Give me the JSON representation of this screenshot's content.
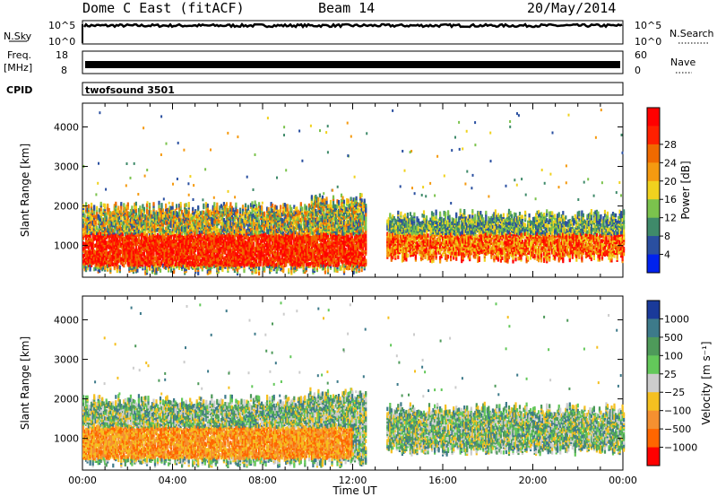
{
  "header": {
    "title": "Dome C East (fitACF)",
    "beam": "Beam 14",
    "date": "20/May/2014"
  },
  "strip": {
    "nsky_label": "N.Sky",
    "nsky_ticks": [
      "10^5",
      "10^0"
    ],
    "nsearch_label": "N.Search",
    "nsearch_ticks": [
      "10^5",
      "10^0"
    ],
    "freq_label": "Freq.",
    "freq_unit": "[MHz]",
    "freq_ticks": [
      "18",
      "8"
    ],
    "nave_label": "Nave",
    "nave_ticks": [
      "60",
      "0"
    ],
    "cpid_label": "CPID",
    "cpid_value": "twofsound 3501"
  },
  "chart_data": [
    {
      "type": "heatmap",
      "panel": "power",
      "ylabel": "Slant Range [km]",
      "yticks": [
        "1000",
        "2000",
        "3000",
        "4000"
      ],
      "ylim": [
        200,
        4600
      ],
      "xlim_hours": [
        0,
        24
      ],
      "colorbar_label": "Power [dB]",
      "colorbar_ticks": [
        "4",
        "8",
        "12",
        "16",
        "20",
        "24",
        "28"
      ],
      "colors": [
        "#0022ee",
        "#2a4fa0",
        "#3f8a6a",
        "#7bc34d",
        "#f0d21e",
        "#f59a10",
        "#f06a00",
        "#ff2000",
        "#ff0000"
      ],
      "scatter_groups": [
        {
          "start": 0,
          "end": 12.6,
          "range_min": 300,
          "range_max": 2100
        },
        {
          "start": 13.5,
          "end": 24,
          "range_min": 600,
          "range_max": 1900
        }
      ]
    },
    {
      "type": "heatmap",
      "panel": "velocity",
      "ylabel": "Slant Range [km]",
      "yticks": [
        "1000",
        "2000",
        "3000",
        "4000"
      ],
      "ylim": [
        200,
        4600
      ],
      "xlim_hours": [
        0,
        24
      ],
      "colorbar_label": "Velocity [m s⁻¹]",
      "colorbar_ticks": [
        "1000",
        "500",
        "100",
        "25",
        "−25",
        "−100",
        "−500",
        "−1000"
      ],
      "colors": [
        "#1a3a9a",
        "#3d7a8a",
        "#4e9a5a",
        "#63c85a",
        "#cccccc",
        "#f5c020",
        "#f59030",
        "#ff6600",
        "#ff0000"
      ],
      "scatter_groups": [
        {
          "start": 0,
          "end": 12.6,
          "range_min": 300,
          "range_max": 2100
        },
        {
          "start": 13.5,
          "end": 24,
          "range_min": 600,
          "range_max": 1900
        }
      ]
    }
  ],
  "xaxis": {
    "label": "Time UT",
    "ticks": [
      "00:00",
      "04:00",
      "08:00",
      "12:00",
      "16:00",
      "20:00",
      "00:00"
    ]
  }
}
